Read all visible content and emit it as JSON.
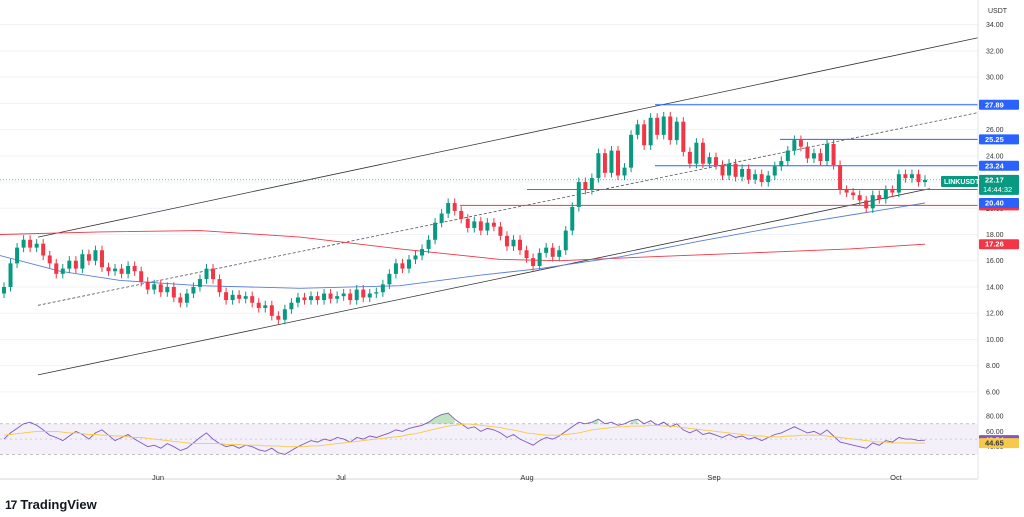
{
  "brand": {
    "logo_glyph": "17",
    "name": "TradingView"
  },
  "chart_data": {
    "type": "candlestick",
    "currency_label": "USDT",
    "symbol": "LINKUSDT",
    "price_axis": {
      "ticks": [
        "34.00",
        "32.00",
        "30.00",
        "28.00",
        "26.00",
        "24.00",
        "22.00",
        "20.00",
        "18.00",
        "16.00",
        "14.00",
        "12.00",
        "10.00",
        "8.00",
        "6.00"
      ],
      "ylim": [
        5.0,
        35.5
      ]
    },
    "time_axis": {
      "labels": [
        "Jun",
        "Jul",
        "Aug",
        "Sep",
        "Oct"
      ]
    },
    "last_price": {
      "value": "22.17",
      "countdown": "14:44:32",
      "color": "#089981"
    },
    "levels": [
      {
        "value": "27.89",
        "color": "#2962ff"
      },
      {
        "value": "25.25",
        "color": "#2962ff"
      },
      {
        "value": "23.24",
        "color": "#2962ff"
      },
      {
        "value": "21.43",
        "color": "#f23645"
      },
      {
        "value": "20.22",
        "color": "#f23645"
      }
    ],
    "moving_averages": [
      {
        "value": "20.40",
        "color": "#2962ff"
      },
      {
        "value": "17.26",
        "color": "#f23645"
      }
    ],
    "candles": [
      {
        "o": 13.5,
        "c": 14.0
      },
      {
        "o": 14.0,
        "c": 15.8
      },
      {
        "o": 15.8,
        "c": 17.0
      },
      {
        "o": 17.0,
        "c": 17.6
      },
      {
        "o": 17.6,
        "c": 17.0
      },
      {
        "o": 17.0,
        "c": 17.3
      },
      {
        "o": 17.3,
        "c": 16.4
      },
      {
        "o": 16.4,
        "c": 15.8
      },
      {
        "o": 15.8,
        "c": 15.0
      },
      {
        "o": 15.0,
        "c": 15.4
      },
      {
        "o": 15.4,
        "c": 16.0
      },
      {
        "o": 16.0,
        "c": 15.4
      },
      {
        "o": 15.4,
        "c": 16.5
      },
      {
        "o": 16.5,
        "c": 16.0
      },
      {
        "o": 16.0,
        "c": 16.8
      },
      {
        "o": 16.8,
        "c": 15.5
      },
      {
        "o": 15.5,
        "c": 15.2
      },
      {
        "o": 15.2,
        "c": 15.4
      },
      {
        "o": 15.4,
        "c": 15.0
      },
      {
        "o": 15.0,
        "c": 15.6
      },
      {
        "o": 15.6,
        "c": 15.2
      },
      {
        "o": 15.2,
        "c": 14.4
      },
      {
        "o": 14.4,
        "c": 13.8
      },
      {
        "o": 13.8,
        "c": 14.2
      },
      {
        "o": 14.2,
        "c": 13.6
      },
      {
        "o": 13.6,
        "c": 14.0
      },
      {
        "o": 14.0,
        "c": 13.2
      },
      {
        "o": 13.2,
        "c": 12.8
      },
      {
        "o": 12.8,
        "c": 13.5
      },
      {
        "o": 13.5,
        "c": 14.0
      },
      {
        "o": 14.0,
        "c": 14.6
      },
      {
        "o": 14.6,
        "c": 15.4
      },
      {
        "o": 15.4,
        "c": 14.6
      },
      {
        "o": 14.6,
        "c": 13.6
      },
      {
        "o": 13.6,
        "c": 13.0
      },
      {
        "o": 13.0,
        "c": 13.4
      },
      {
        "o": 13.4,
        "c": 13.1
      },
      {
        "o": 13.1,
        "c": 13.3
      },
      {
        "o": 13.3,
        "c": 12.8
      },
      {
        "o": 12.8,
        "c": 12.4
      },
      {
        "o": 12.4,
        "c": 12.6
      },
      {
        "o": 12.6,
        "c": 11.8
      },
      {
        "o": 11.8,
        "c": 11.5
      },
      {
        "o": 11.5,
        "c": 12.3
      },
      {
        "o": 12.3,
        "c": 12.8
      },
      {
        "o": 12.8,
        "c": 13.2
      },
      {
        "o": 13.2,
        "c": 13.0
      },
      {
        "o": 13.0,
        "c": 13.3
      },
      {
        "o": 13.3,
        "c": 13.0
      },
      {
        "o": 13.0,
        "c": 13.5
      },
      {
        "o": 13.5,
        "c": 13.1
      },
      {
        "o": 13.1,
        "c": 13.3
      },
      {
        "o": 13.3,
        "c": 13.5
      },
      {
        "o": 13.5,
        "c": 13.0
      },
      {
        "o": 13.0,
        "c": 13.8
      },
      {
        "o": 13.8,
        "c": 13.2
      },
      {
        "o": 13.2,
        "c": 13.5
      },
      {
        "o": 13.5,
        "c": 13.6
      },
      {
        "o": 13.6,
        "c": 14.2
      },
      {
        "o": 14.2,
        "c": 15.0
      },
      {
        "o": 15.0,
        "c": 15.8
      },
      {
        "o": 15.8,
        "c": 15.4
      },
      {
        "o": 15.4,
        "c": 16.1
      },
      {
        "o": 16.1,
        "c": 16.4
      },
      {
        "o": 16.4,
        "c": 16.9
      },
      {
        "o": 16.9,
        "c": 17.6
      },
      {
        "o": 17.6,
        "c": 18.9
      },
      {
        "o": 18.9,
        "c": 19.6
      },
      {
        "o": 19.6,
        "c": 20.4
      },
      {
        "o": 20.4,
        "c": 19.8
      },
      {
        "o": 19.8,
        "c": 19.2
      },
      {
        "o": 19.2,
        "c": 18.5
      },
      {
        "o": 18.5,
        "c": 19.0
      },
      {
        "o": 19.0,
        "c": 18.3
      },
      {
        "o": 18.3,
        "c": 18.9
      },
      {
        "o": 18.9,
        "c": 18.6
      },
      {
        "o": 18.6,
        "c": 17.9
      },
      {
        "o": 17.9,
        "c": 17.1
      },
      {
        "o": 17.1,
        "c": 17.6
      },
      {
        "o": 17.6,
        "c": 16.8
      },
      {
        "o": 16.8,
        "c": 16.2
      },
      {
        "o": 16.2,
        "c": 15.6
      },
      {
        "o": 15.6,
        "c": 16.6
      },
      {
        "o": 16.6,
        "c": 17.0
      },
      {
        "o": 17.0,
        "c": 16.3
      },
      {
        "o": 16.3,
        "c": 16.8
      },
      {
        "o": 16.8,
        "c": 18.3
      },
      {
        "o": 18.3,
        "c": 20.1
      },
      {
        "o": 20.1,
        "c": 22.0
      },
      {
        "o": 22.0,
        "c": 21.4
      },
      {
        "o": 21.4,
        "c": 22.3
      },
      {
        "o": 22.3,
        "c": 24.2
      },
      {
        "o": 24.2,
        "c": 22.7
      },
      {
        "o": 22.7,
        "c": 24.4
      },
      {
        "o": 24.4,
        "c": 22.5
      },
      {
        "o": 22.5,
        "c": 23.1
      },
      {
        "o": 23.1,
        "c": 25.6
      },
      {
        "o": 25.6,
        "c": 26.4
      },
      {
        "o": 26.4,
        "c": 24.8
      },
      {
        "o": 24.8,
        "c": 26.9
      },
      {
        "o": 26.9,
        "c": 25.6
      },
      {
        "o": 25.6,
        "c": 27.0
      },
      {
        "o": 27.0,
        "c": 25.2
      },
      {
        "o": 25.2,
        "c": 26.6
      },
      {
        "o": 26.6,
        "c": 24.3
      },
      {
        "o": 24.3,
        "c": 23.4
      },
      {
        "o": 23.4,
        "c": 25.0
      },
      {
        "o": 25.0,
        "c": 23.4
      },
      {
        "o": 23.4,
        "c": 23.9
      },
      {
        "o": 23.9,
        "c": 23.3
      },
      {
        "o": 23.3,
        "c": 22.5
      },
      {
        "o": 22.5,
        "c": 23.4
      },
      {
        "o": 23.4,
        "c": 22.4
      },
      {
        "o": 22.4,
        "c": 23.0
      },
      {
        "o": 23.0,
        "c": 22.2
      },
      {
        "o": 22.2,
        "c": 22.6
      },
      {
        "o": 22.6,
        "c": 22.0
      },
      {
        "o": 22.0,
        "c": 22.5
      },
      {
        "o": 22.5,
        "c": 23.2
      },
      {
        "o": 23.2,
        "c": 23.6
      },
      {
        "o": 23.6,
        "c": 24.4
      },
      {
        "o": 24.4,
        "c": 25.2
      },
      {
        "o": 25.2,
        "c": 24.7
      },
      {
        "o": 24.7,
        "c": 23.8
      },
      {
        "o": 23.8,
        "c": 24.2
      },
      {
        "o": 24.2,
        "c": 23.6
      },
      {
        "o": 23.6,
        "c": 24.9
      },
      {
        "o": 24.9,
        "c": 23.3
      },
      {
        "o": 23.3,
        "c": 21.4
      },
      {
        "o": 21.4,
        "c": 21.2
      },
      {
        "o": 21.2,
        "c": 21.0
      },
      {
        "o": 21.0,
        "c": 20.6
      },
      {
        "o": 20.6,
        "c": 20.0
      },
      {
        "o": 20.0,
        "c": 21.0
      },
      {
        "o": 21.0,
        "c": 20.7
      },
      {
        "o": 20.7,
        "c": 21.4
      },
      {
        "o": 21.4,
        "c": 21.2
      },
      {
        "o": 21.2,
        "c": 22.6
      },
      {
        "o": 22.6,
        "c": 22.3
      },
      {
        "o": 22.3,
        "c": 22.6
      },
      {
        "o": 22.6,
        "c": 22.0
      },
      {
        "o": 22.0,
        "c": 22.17
      }
    ],
    "rsi": {
      "ticks": [
        "80.00",
        "60.00",
        "40.00"
      ],
      "ylim": [
        20,
        88
      ],
      "upper_band": 70,
      "lower_band": 30,
      "value": "48.54",
      "value_color": "#7e57c2",
      "ma_value": "44.65",
      "ma_color": "#f7c948",
      "series": [
        50,
        58,
        64,
        70,
        72,
        68,
        62,
        55,
        52,
        48,
        54,
        60,
        56,
        50,
        58,
        62,
        55,
        48,
        52,
        56,
        50,
        45,
        40,
        42,
        38,
        44,
        40,
        35,
        38,
        45,
        52,
        58,
        50,
        44,
        40,
        42,
        38,
        42,
        40,
        36,
        34,
        38,
        32,
        30,
        35,
        40,
        44,
        48,
        46,
        50,
        48,
        52,
        50,
        46,
        52,
        50,
        54,
        52,
        55,
        58,
        62,
        60,
        64,
        66,
        68,
        72,
        78,
        82,
        84,
        76,
        70,
        64,
        66,
        60,
        64,
        62,
        58,
        52,
        56,
        50,
        46,
        42,
        48,
        52,
        50,
        54,
        60,
        66,
        72,
        70,
        72,
        76,
        70,
        72,
        68,
        70,
        74,
        76,
        70,
        74,
        68,
        72,
        66,
        70,
        62,
        58,
        62,
        56,
        58,
        55,
        52,
        56,
        52,
        54,
        50,
        52,
        48,
        52,
        56,
        58,
        62,
        66,
        62,
        58,
        60,
        56,
        62,
        54,
        46,
        44,
        42,
        40,
        38,
        45,
        42,
        48,
        46,
        52,
        50,
        50,
        48,
        48.54
      ],
      "ma_series": [
        55,
        56,
        57,
        58,
        59,
        60,
        60,
        60,
        60,
        59,
        58,
        58,
        57,
        56,
        56,
        55,
        55,
        54,
        54,
        53,
        52,
        52,
        51,
        50,
        49,
        48,
        47,
        46,
        45,
        44,
        44,
        44,
        44,
        44,
        43,
        43,
        43,
        42,
        42,
        42,
        41,
        41,
        41,
        40,
        40,
        40,
        40,
        41,
        41,
        42,
        43,
        44,
        45,
        46,
        47,
        48,
        49,
        50,
        51,
        52,
        53,
        54,
        56,
        57,
        59,
        61,
        63,
        65,
        67,
        68,
        69,
        70,
        69,
        68,
        67,
        66,
        65,
        63,
        62,
        60,
        58,
        57,
        56,
        55,
        55,
        55,
        56,
        57,
        58,
        60,
        62,
        63,
        64,
        65,
        66,
        66,
        67,
        67,
        67,
        68,
        68,
        67,
        67,
        66,
        65,
        64,
        63,
        62,
        61,
        60,
        59,
        58,
        57,
        56,
        55,
        54,
        54,
        53,
        53,
        53,
        54,
        54,
        55,
        55,
        55,
        55,
        54,
        53,
        52,
        51,
        50,
        49,
        48,
        47,
        46,
        46,
        45,
        45,
        45,
        44.8,
        44.7,
        44.65
      ]
    }
  }
}
